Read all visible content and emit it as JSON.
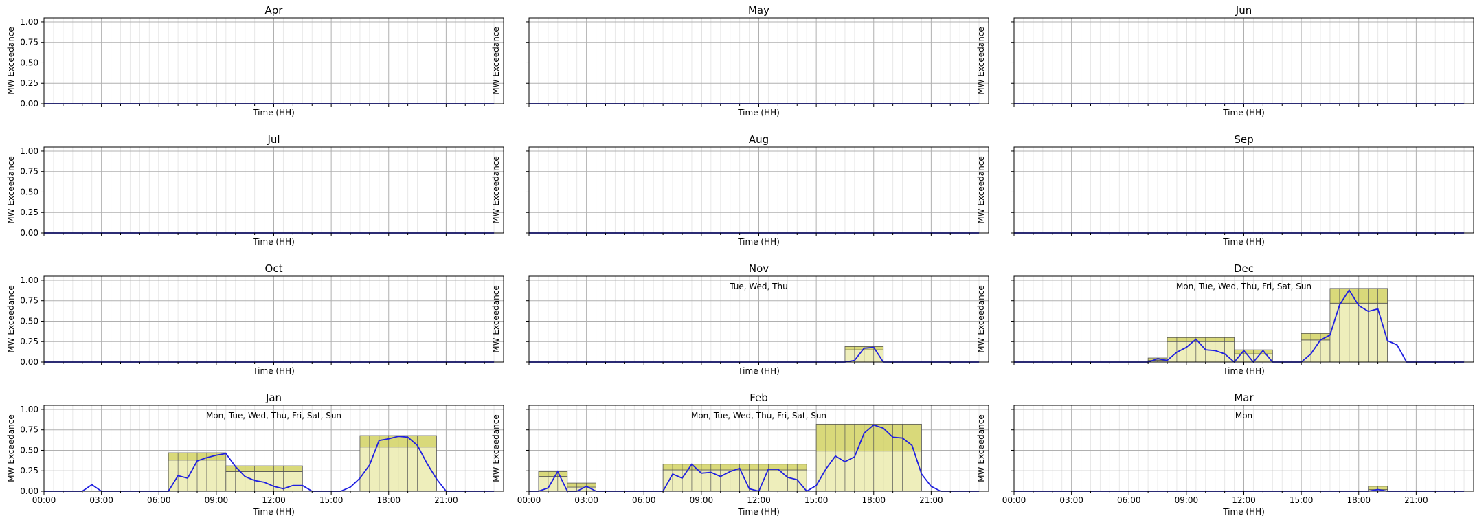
{
  "chart_data": {
    "type": "line",
    "layout": "4x3 small multiples",
    "xlabel": "Time (HH)",
    "ylabel": "MW Exceedance",
    "xlim": [
      0,
      24
    ],
    "ylim": [
      0,
      1.05
    ],
    "x_ticks": [
      "00:00",
      "03:00",
      "06:00",
      "09:00",
      "12:00",
      "15:00",
      "18:00",
      "21:00"
    ],
    "y_ticks": [
      "0.00",
      "0.25",
      "0.50",
      "0.75",
      "1.00"
    ],
    "grid": true,
    "colors": {
      "line": "#1f1fe0",
      "envelope_light": "#eeeebb",
      "envelope_dark": "#d9d97a",
      "edge": "#555555",
      "grid_major": "#b0b0b0",
      "grid_minor": "#e8e8e8"
    },
    "panels": [
      {
        "title": "Apr",
        "annotation": "",
        "bars": [],
        "line": []
      },
      {
        "title": "May",
        "annotation": "",
        "bars": [],
        "line": []
      },
      {
        "title": "Jun",
        "annotation": "",
        "bars": [],
        "line": []
      },
      {
        "title": "Jul",
        "annotation": "",
        "bars": [],
        "line": []
      },
      {
        "title": "Aug",
        "annotation": "",
        "bars": [],
        "line": []
      },
      {
        "title": "Sep",
        "annotation": "",
        "bars": [],
        "line": []
      },
      {
        "title": "Oct",
        "annotation": "",
        "bars": [],
        "line": []
      },
      {
        "title": "Nov",
        "annotation": "Tue, Wed, Thu",
        "bars": [
          {
            "start": 16.5,
            "end": 18.5,
            "low": 0.15,
            "high": 0.19
          }
        ],
        "line": [
          [
            16.5,
            0.0
          ],
          [
            17.0,
            0.02
          ],
          [
            17.5,
            0.17
          ],
          [
            18.0,
            0.18
          ],
          [
            18.5,
            0.0
          ]
        ]
      },
      {
        "title": "Dec",
        "annotation": "Mon, Tue, Wed, Thu, Fri, Sat, Sun",
        "bars": [
          {
            "start": 7.0,
            "end": 8.0,
            "low": 0.02,
            "high": 0.05
          },
          {
            "start": 8.0,
            "end": 11.5,
            "low": 0.25,
            "high": 0.3
          },
          {
            "start": 11.5,
            "end": 13.5,
            "low": 0.1,
            "high": 0.15
          },
          {
            "start": 15.0,
            "end": 16.5,
            "low": 0.27,
            "high": 0.35
          },
          {
            "start": 16.5,
            "end": 19.5,
            "low": 0.72,
            "high": 0.9
          }
        ],
        "line": [
          [
            7.0,
            0.0
          ],
          [
            7.5,
            0.04
          ],
          [
            8.0,
            0.02
          ],
          [
            8.5,
            0.12
          ],
          [
            9.0,
            0.18
          ],
          [
            9.5,
            0.28
          ],
          [
            10.0,
            0.15
          ],
          [
            10.5,
            0.14
          ],
          [
            11.0,
            0.1
          ],
          [
            11.5,
            0.0
          ],
          [
            12.0,
            0.14
          ],
          [
            12.5,
            0.0
          ],
          [
            13.0,
            0.14
          ],
          [
            13.5,
            0.0
          ],
          [
            15.0,
            0.0
          ],
          [
            15.5,
            0.1
          ],
          [
            16.0,
            0.27
          ],
          [
            16.5,
            0.33
          ],
          [
            17.0,
            0.7
          ],
          [
            17.5,
            0.88
          ],
          [
            18.0,
            0.69
          ],
          [
            18.5,
            0.62
          ],
          [
            19.0,
            0.65
          ],
          [
            19.5,
            0.26
          ],
          [
            20.0,
            0.21
          ],
          [
            20.5,
            0.0
          ],
          [
            21.0,
            0.0
          ]
        ]
      },
      {
        "title": "Jan",
        "annotation": "Mon, Tue, Wed, Thu, Fri, Sat, Sun",
        "bars": [
          {
            "start": 6.5,
            "end": 9.5,
            "low": 0.38,
            "high": 0.47
          },
          {
            "start": 9.5,
            "end": 13.5,
            "low": 0.24,
            "high": 0.31
          },
          {
            "start": 16.5,
            "end": 20.5,
            "low": 0.54,
            "high": 0.68
          }
        ],
        "line": [
          [
            0.0,
            0.0
          ],
          [
            2.0,
            0.0
          ],
          [
            2.5,
            0.08
          ],
          [
            3.0,
            0.0
          ],
          [
            6.5,
            0.0
          ],
          [
            7.0,
            0.19
          ],
          [
            7.5,
            0.16
          ],
          [
            8.0,
            0.37
          ],
          [
            8.5,
            0.41
          ],
          [
            9.0,
            0.44
          ],
          [
            9.5,
            0.46
          ],
          [
            10.0,
            0.3
          ],
          [
            10.5,
            0.18
          ],
          [
            11.0,
            0.13
          ],
          [
            11.5,
            0.11
          ],
          [
            12.0,
            0.06
          ],
          [
            12.5,
            0.03
          ],
          [
            13.0,
            0.07
          ],
          [
            13.5,
            0.07
          ],
          [
            14.0,
            0.0
          ],
          [
            15.5,
            0.0
          ],
          [
            16.0,
            0.05
          ],
          [
            16.5,
            0.16
          ],
          [
            17.0,
            0.32
          ],
          [
            17.5,
            0.62
          ],
          [
            18.0,
            0.64
          ],
          [
            18.5,
            0.67
          ],
          [
            19.0,
            0.66
          ],
          [
            19.5,
            0.56
          ],
          [
            20.0,
            0.34
          ],
          [
            20.5,
            0.15
          ],
          [
            21.0,
            0.0
          ]
        ]
      },
      {
        "title": "Feb",
        "annotation": "Mon, Tue, Wed, Thu, Fri, Sat, Sun",
        "bars": [
          {
            "start": 0.5,
            "end": 2.0,
            "low": 0.18,
            "high": 0.24
          },
          {
            "start": 2.0,
            "end": 3.5,
            "low": 0.05,
            "high": 0.1
          },
          {
            "start": 7.0,
            "end": 14.5,
            "low": 0.26,
            "high": 0.33
          },
          {
            "start": 15.0,
            "end": 20.5,
            "low": 0.49,
            "high": 0.82
          }
        ],
        "line": [
          [
            0.0,
            0.0
          ],
          [
            0.5,
            0.0
          ],
          [
            1.0,
            0.04
          ],
          [
            1.5,
            0.24
          ],
          [
            2.0,
            0.0
          ],
          [
            2.5,
            0.0
          ],
          [
            3.0,
            0.06
          ],
          [
            3.5,
            0.0
          ],
          [
            7.0,
            0.0
          ],
          [
            7.5,
            0.21
          ],
          [
            8.0,
            0.16
          ],
          [
            8.5,
            0.33
          ],
          [
            9.0,
            0.22
          ],
          [
            9.5,
            0.23
          ],
          [
            10.0,
            0.18
          ],
          [
            10.5,
            0.24
          ],
          [
            11.0,
            0.28
          ],
          [
            11.5,
            0.03
          ],
          [
            12.0,
            0.0
          ],
          [
            12.5,
            0.27
          ],
          [
            13.0,
            0.27
          ],
          [
            13.5,
            0.17
          ],
          [
            14.0,
            0.14
          ],
          [
            14.5,
            0.0
          ],
          [
            15.0,
            0.07
          ],
          [
            15.5,
            0.27
          ],
          [
            16.0,
            0.43
          ],
          [
            16.5,
            0.36
          ],
          [
            17.0,
            0.42
          ],
          [
            17.5,
            0.71
          ],
          [
            18.0,
            0.81
          ],
          [
            18.5,
            0.77
          ],
          [
            19.0,
            0.66
          ],
          [
            19.5,
            0.65
          ],
          [
            20.0,
            0.56
          ],
          [
            20.5,
            0.21
          ],
          [
            21.0,
            0.06
          ],
          [
            21.5,
            0.0
          ]
        ]
      },
      {
        "title": "Mar",
        "annotation": "Mon",
        "bars": [
          {
            "start": 18.5,
            "end": 19.5,
            "low": 0.02,
            "high": 0.06
          }
        ],
        "line": [
          [
            18.5,
            0.0
          ],
          [
            19.0,
            0.02
          ],
          [
            19.5,
            0.0
          ]
        ]
      }
    ]
  }
}
